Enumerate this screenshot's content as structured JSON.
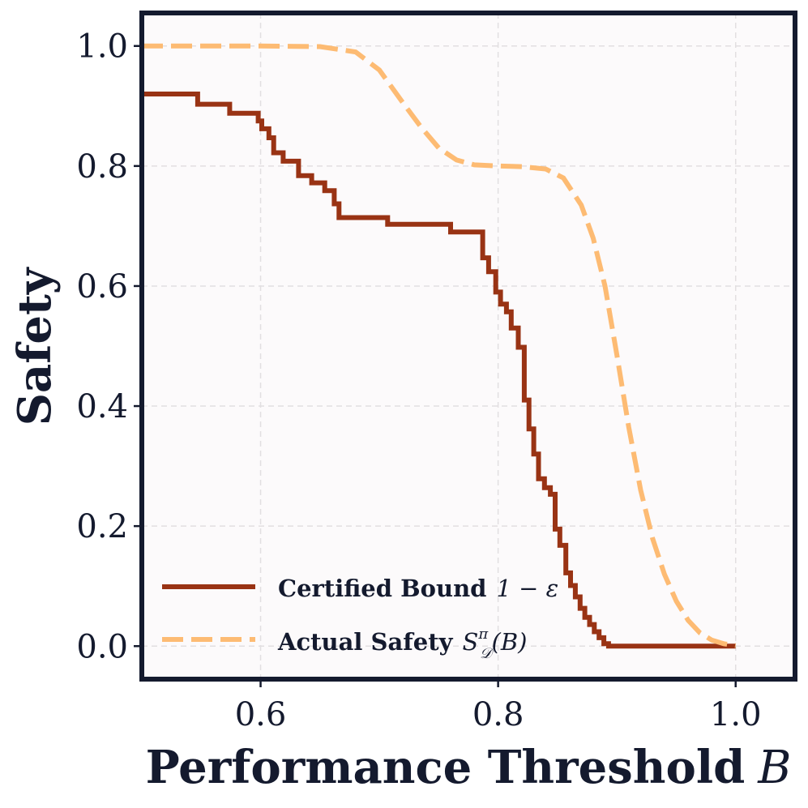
{
  "chart_data": {
    "type": "line",
    "title": "",
    "xlabel": "Performance Threshold",
    "xlabel_var": "B",
    "ylabel": "Safety",
    "xlim": [
      0.5,
      1.05
    ],
    "ylim": [
      -0.055,
      1.055
    ],
    "xticks": [
      0.6,
      0.8,
      1.0
    ],
    "xtick_labels": [
      "0.6",
      "0.8",
      "1.0"
    ],
    "yticks": [
      0.0,
      0.2,
      0.4,
      0.6,
      0.8,
      1.0
    ],
    "ytick_labels": [
      "0.0",
      "0.2",
      "0.4",
      "0.6",
      "0.8",
      "1.0"
    ],
    "grid": true,
    "legend_position": "bottom-left",
    "legend": {
      "certified": {
        "label": "Certified Bound",
        "math": "1 − ε"
      },
      "actual": {
        "label": "Actual Safety",
        "math": "S",
        "math_sup": "π",
        "math_sub": "𝒟",
        "math_arg": "(B)"
      }
    },
    "series": [
      {
        "name": "Certified Bound 1 − ε",
        "style": "step",
        "color": "#993314",
        "x": [
          0.5,
          0.547,
          0.574,
          0.598,
          0.601,
          0.607,
          0.611,
          0.619,
          0.632,
          0.643,
          0.654,
          0.662,
          0.666,
          0.707,
          0.76,
          0.787,
          0.792,
          0.798,
          0.802,
          0.807,
          0.811,
          0.817,
          0.822,
          0.826,
          0.83,
          0.834,
          0.839,
          0.844,
          0.848,
          0.852,
          0.857,
          0.861,
          0.865,
          0.869,
          0.873,
          0.877,
          0.881,
          0.885,
          0.889,
          0.893,
          0.9,
          1.0
        ],
        "y": [
          0.92,
          0.903,
          0.888,
          0.875,
          0.862,
          0.847,
          0.822,
          0.808,
          0.784,
          0.772,
          0.759,
          0.737,
          0.714,
          0.703,
          0.69,
          0.647,
          0.624,
          0.59,
          0.57,
          0.557,
          0.53,
          0.498,
          0.41,
          0.362,
          0.32,
          0.279,
          0.264,
          0.253,
          0.195,
          0.168,
          0.122,
          0.101,
          0.082,
          0.063,
          0.048,
          0.036,
          0.024,
          0.014,
          0.004,
          0.0,
          0.0,
          0.0
        ]
      },
      {
        "name": "Actual Safety S^π_D(B)",
        "style": "dashed",
        "color": "#fdbb73",
        "x": [
          0.5,
          0.55,
          0.6,
          0.65,
          0.68,
          0.7,
          0.72,
          0.735,
          0.75,
          0.765,
          0.78,
          0.8,
          0.82,
          0.84,
          0.855,
          0.87,
          0.88,
          0.89,
          0.9,
          0.91,
          0.92,
          0.93,
          0.94,
          0.95,
          0.96,
          0.97,
          0.98,
          0.99,
          1.0
        ],
        "y": [
          1.0,
          1.0,
          1.0,
          0.999,
          0.99,
          0.96,
          0.905,
          0.865,
          0.83,
          0.81,
          0.802,
          0.8,
          0.799,
          0.795,
          0.78,
          0.735,
          0.68,
          0.6,
          0.485,
          0.365,
          0.26,
          0.18,
          0.12,
          0.075,
          0.043,
          0.022,
          0.01,
          0.004,
          0.001
        ]
      }
    ]
  }
}
